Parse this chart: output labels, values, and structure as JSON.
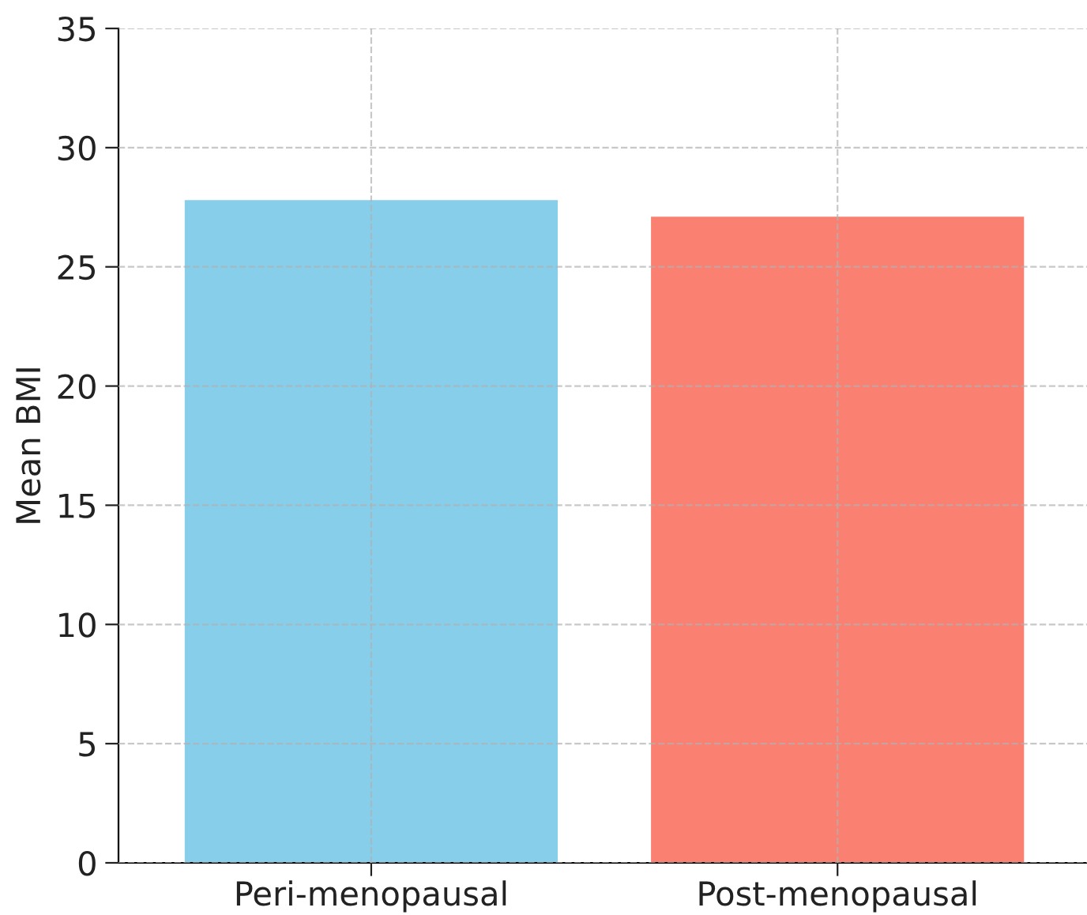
{
  "chart_data": {
    "type": "bar",
    "ylabel": "Mean BMI",
    "categories": [
      "Peri-menopausal",
      "Post-menopausal"
    ],
    "values": [
      27.8,
      27.1
    ],
    "colors": [
      "#87ceeb",
      "#fa8072"
    ],
    "ylim": [
      0,
      35
    ],
    "yticks": [
      0,
      5,
      10,
      15,
      20,
      25,
      30,
      35
    ],
    "grid": true
  }
}
